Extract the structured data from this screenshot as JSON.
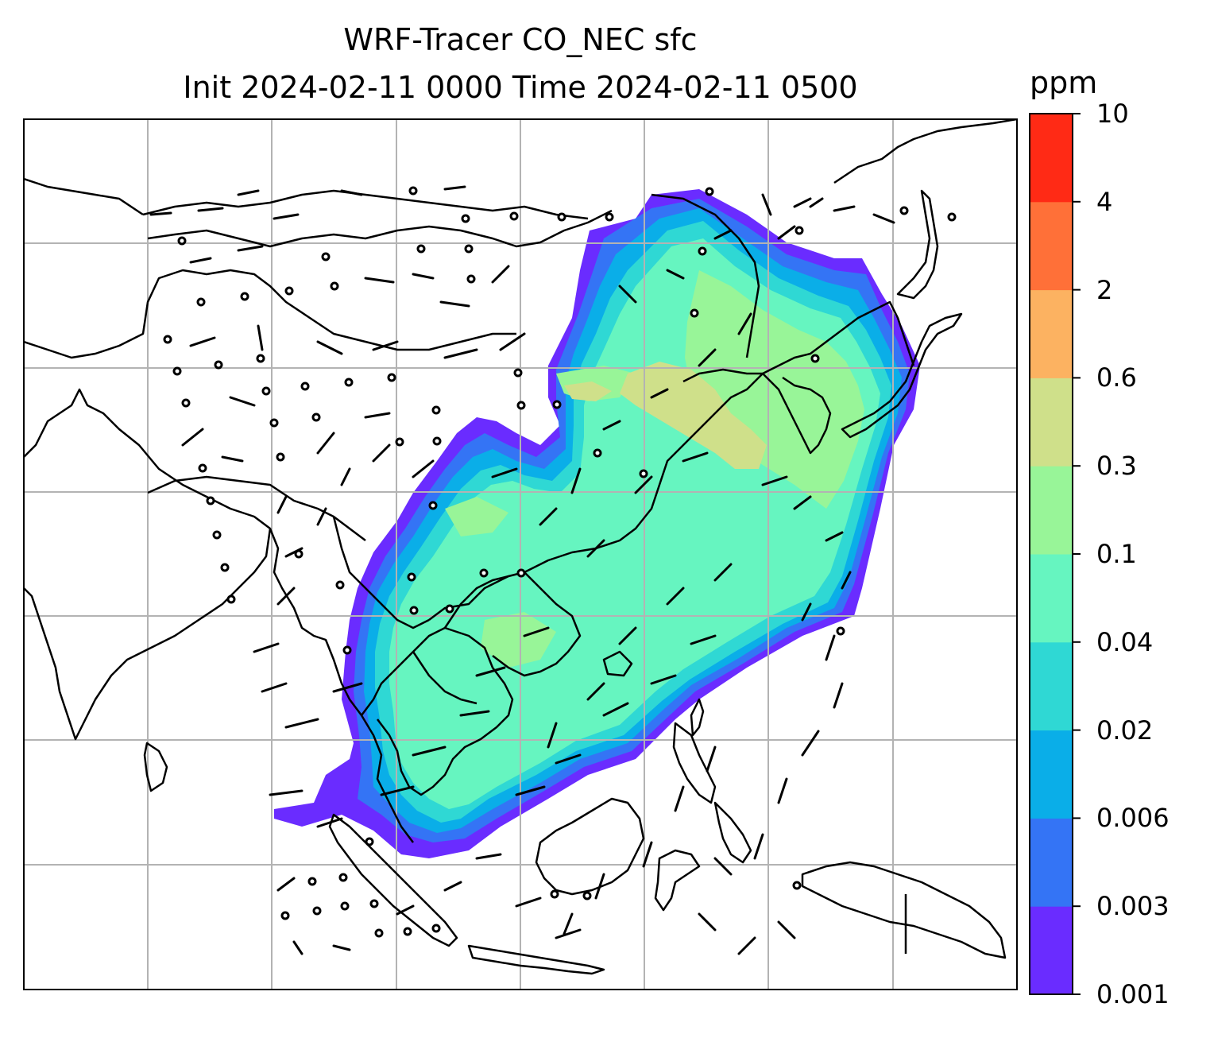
{
  "title": {
    "line1": "WRF-Tracer CO_NEC sfc",
    "line2": "Init 2024-02-11 0000 Time 2024-02-11 0500"
  },
  "colorbar": {
    "unit": "ppm",
    "levels": [
      "0.001",
      "0.003",
      "0.006",
      "0.02",
      "0.04",
      "0.1",
      "0.3",
      "0.6",
      "2",
      "4",
      "10"
    ],
    "colors": [
      "#6a2cff",
      "#3474f5",
      "#0aaee8",
      "#2fd8d4",
      "#66f5c0",
      "#98f598",
      "#cfe08a",
      "#fcb261",
      "#ff7038",
      "#ff2a15"
    ]
  },
  "map": {
    "projection": "lat-lon grid",
    "gridlines": true,
    "overlays": [
      "coastlines",
      "country borders",
      "wind barbs",
      "tracer concentration fill"
    ],
    "plume_region": "East Asia, northeastern China to South China Sea"
  }
}
